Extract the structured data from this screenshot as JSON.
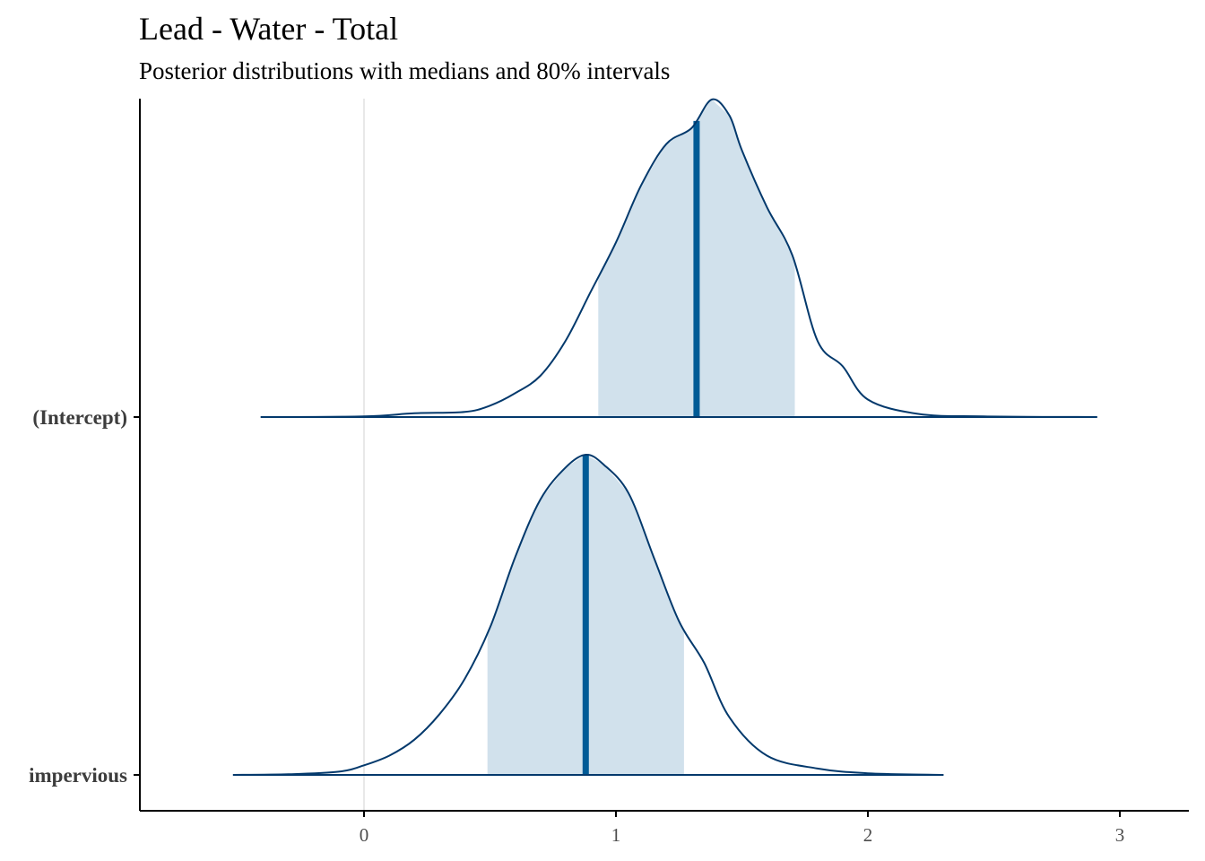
{
  "chart_data": {
    "type": "area",
    "title": "Lead - Water - Total",
    "subtitle": "Posterior distributions with medians and 80% intervals",
    "xlabel": "",
    "ylabel": "",
    "xlim": [
      -0.88,
      3.3
    ],
    "x_ticks": [
      "0",
      "1",
      "2",
      "3"
    ],
    "x_tick_values": [
      0,
      1,
      2,
      3
    ],
    "reference_line": 0,
    "grid": false,
    "colors": {
      "outline": "#03396c",
      "interval_fill": "#d1e1ec",
      "median": "#005b96",
      "axis": "#000000",
      "reference": "#e0e0e0"
    },
    "series": [
      {
        "name": "(Intercept)",
        "median": 1.32,
        "interval_80": [
          0.93,
          1.71
        ],
        "range": [
          -0.41,
          2.91
        ],
        "density": [
          [
            -0.41,
            0.0
          ],
          [
            0.0,
            0.002
          ],
          [
            0.2,
            0.012
          ],
          [
            0.4,
            0.016
          ],
          [
            0.5,
            0.036
          ],
          [
            0.6,
            0.075
          ],
          [
            0.7,
            0.13
          ],
          [
            0.8,
            0.24
          ],
          [
            0.9,
            0.395
          ],
          [
            1.0,
            0.55
          ],
          [
            1.1,
            0.73
          ],
          [
            1.2,
            0.86
          ],
          [
            1.3,
            0.91
          ],
          [
            1.38,
            1.0
          ],
          [
            1.45,
            0.95
          ],
          [
            1.5,
            0.84
          ],
          [
            1.6,
            0.66
          ],
          [
            1.7,
            0.51
          ],
          [
            1.8,
            0.24
          ],
          [
            1.9,
            0.16
          ],
          [
            2.0,
            0.055
          ],
          [
            2.2,
            0.01
          ],
          [
            2.46,
            0.002
          ],
          [
            2.91,
            0.0
          ]
        ]
      },
      {
        "name": "impervious",
        "median": 0.88,
        "interval_80": [
          0.49,
          1.27
        ],
        "range": [
          -0.52,
          2.3
        ],
        "density": [
          [
            -0.52,
            0.0
          ],
          [
            -0.3,
            0.002
          ],
          [
            -0.1,
            0.01
          ],
          [
            0.0,
            0.03
          ],
          [
            0.1,
            0.06
          ],
          [
            0.2,
            0.11
          ],
          [
            0.3,
            0.19
          ],
          [
            0.4,
            0.3
          ],
          [
            0.5,
            0.46
          ],
          [
            0.6,
            0.68
          ],
          [
            0.7,
            0.86
          ],
          [
            0.8,
            0.96
          ],
          [
            0.88,
            1.0
          ],
          [
            0.95,
            0.97
          ],
          [
            1.05,
            0.88
          ],
          [
            1.15,
            0.68
          ],
          [
            1.25,
            0.48
          ],
          [
            1.35,
            0.35
          ],
          [
            1.45,
            0.18
          ],
          [
            1.6,
            0.06
          ],
          [
            1.8,
            0.02
          ],
          [
            2.0,
            0.005
          ],
          [
            2.3,
            0.0
          ]
        ]
      }
    ]
  }
}
